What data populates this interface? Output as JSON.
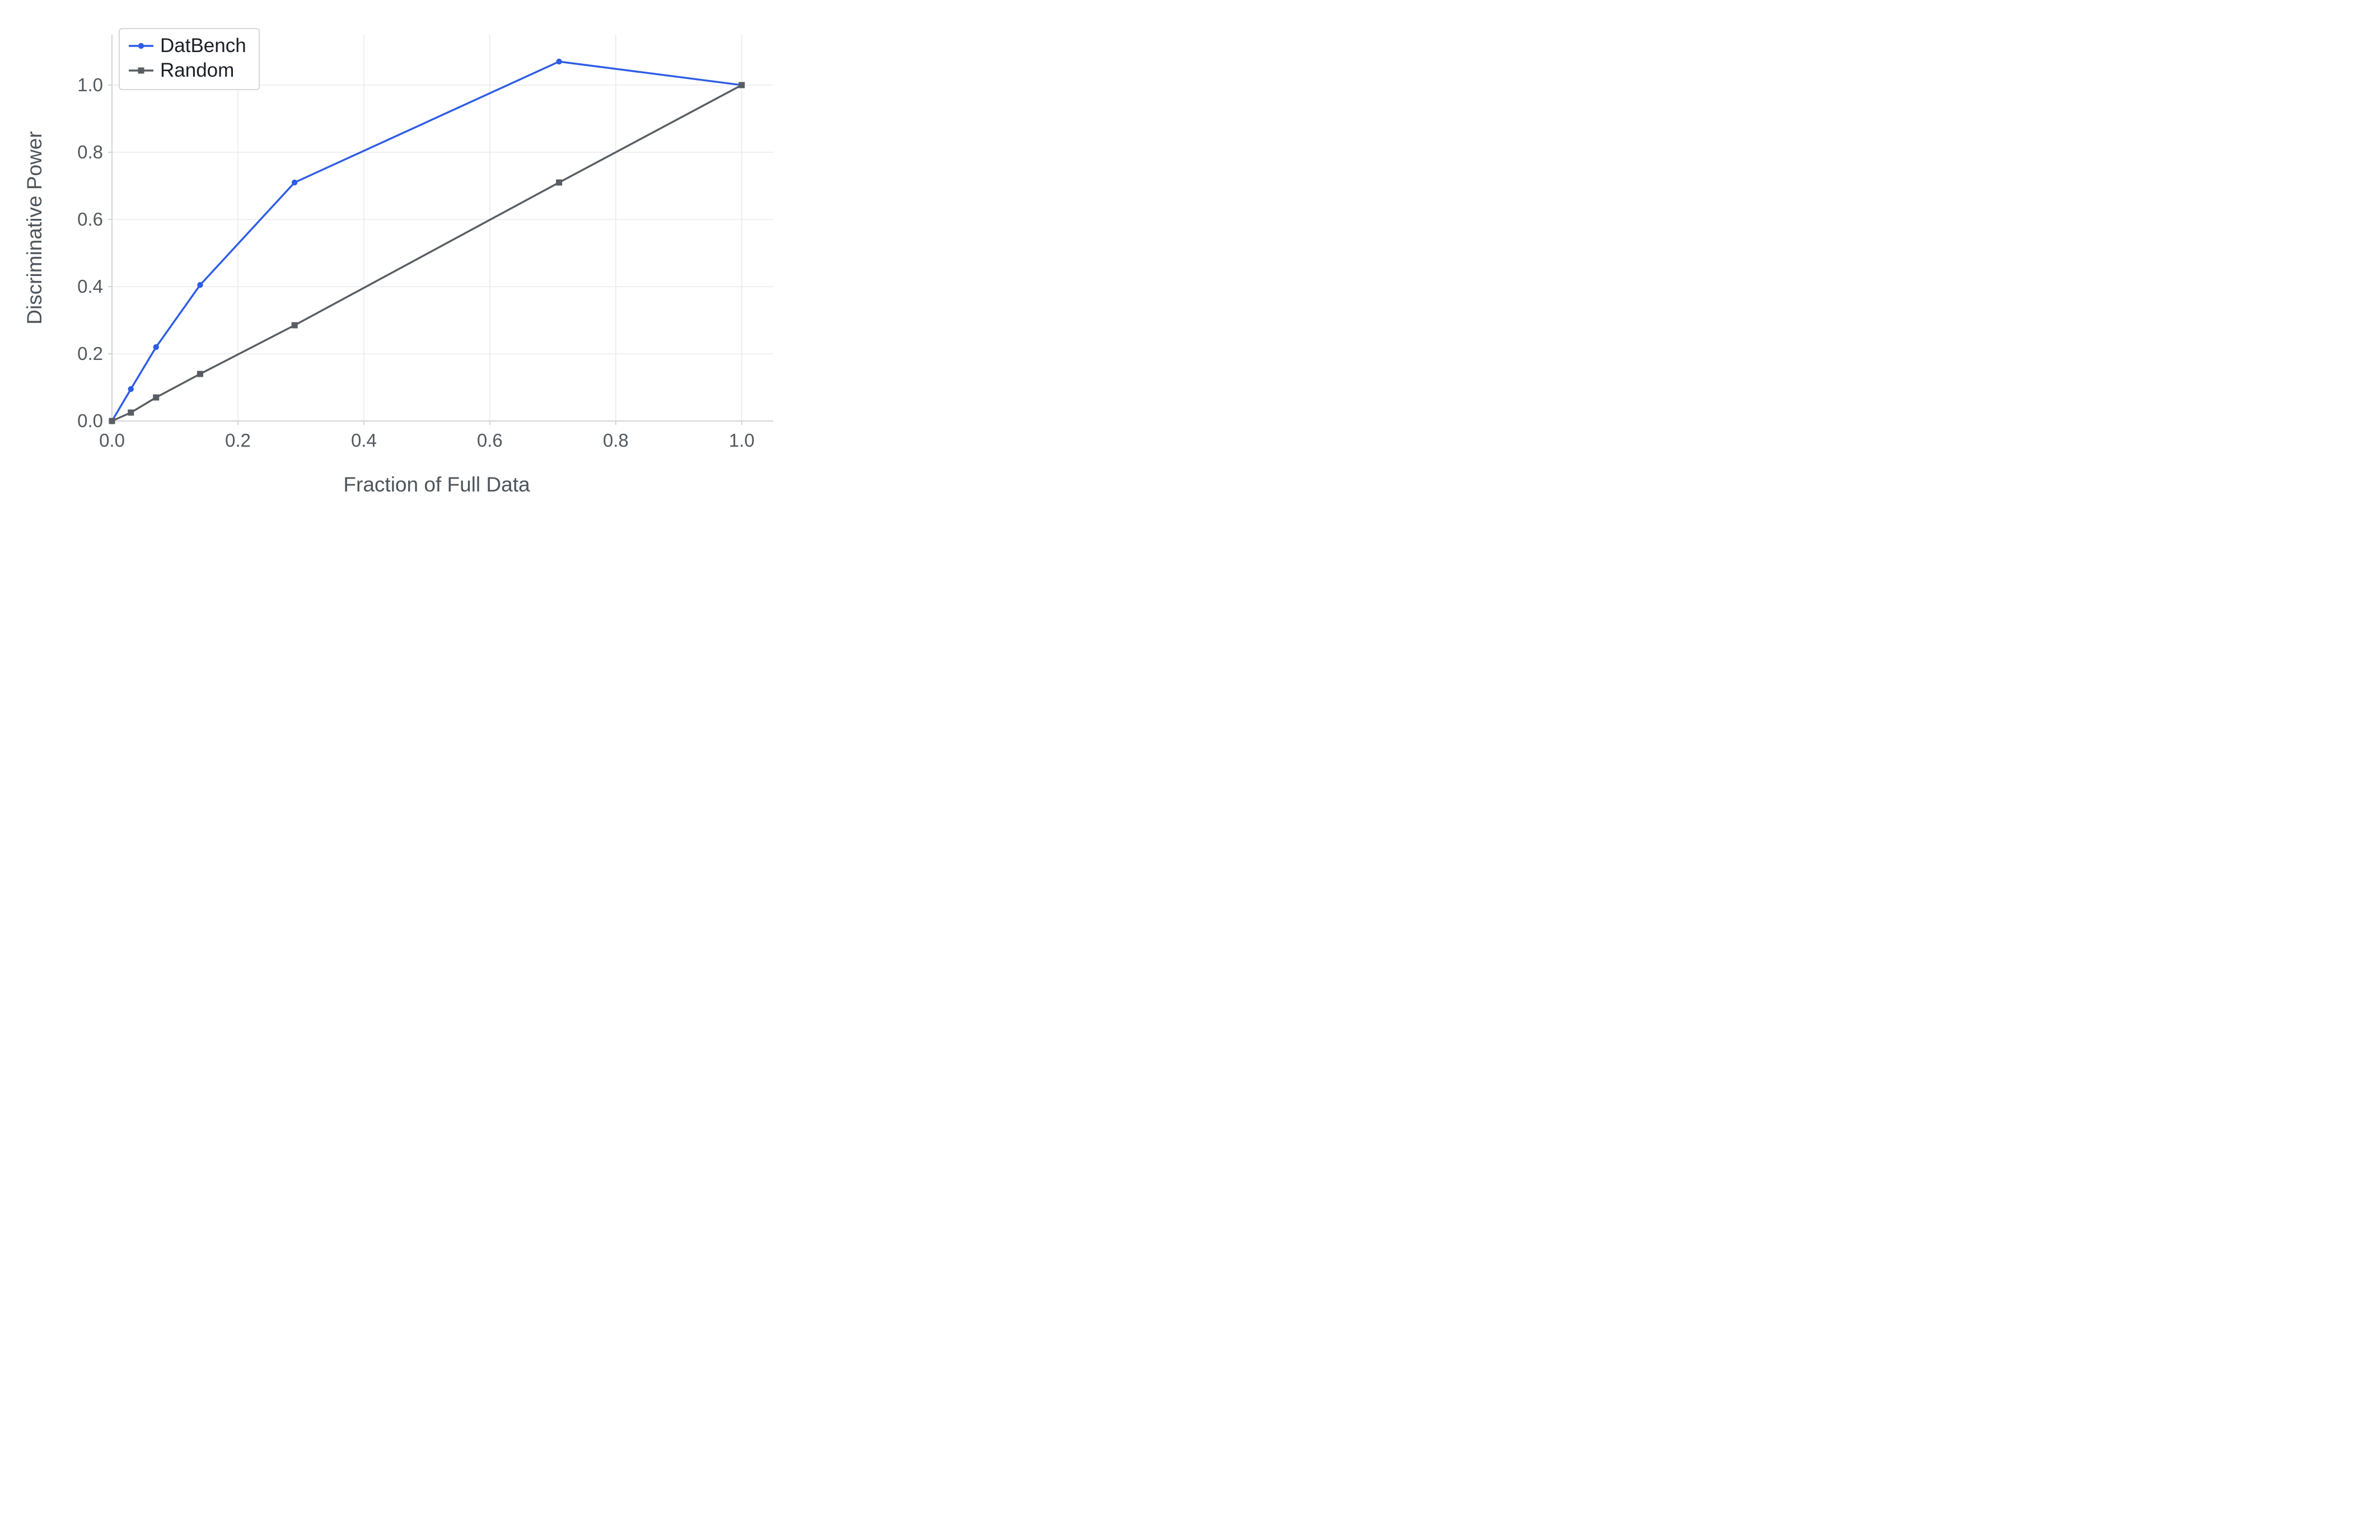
{
  "chart_data": {
    "type": "line",
    "title": "",
    "xlabel": "Fraction of Full Data",
    "ylabel": "Discriminative Power",
    "xlim": [
      0,
      1.05
    ],
    "ylim": [
      0,
      1.15
    ],
    "grid": true,
    "legend_position": "top-left",
    "xticks": {
      "values": [
        0.0,
        0.2,
        0.4,
        0.6,
        0.8,
        1.0
      ],
      "labels": [
        "0.0",
        "0.2",
        "0.4",
        "0.6",
        "0.8",
        "1.0"
      ]
    },
    "yticks": {
      "values": [
        0.0,
        0.2,
        0.4,
        0.6,
        0.8,
        1.0
      ],
      "labels": [
        "0.0",
        "0.2",
        "0.4",
        "0.6",
        "0.8",
        "1.0"
      ]
    },
    "series": [
      {
        "name": "DatBench",
        "color": "#2d5ce6",
        "marker": "circle",
        "x": [
          0.0,
          0.03,
          0.07,
          0.14,
          0.29,
          0.71,
          1.0
        ],
        "y": [
          0.0,
          0.095,
          0.22,
          0.405,
          0.71,
          1.07,
          1.0
        ]
      },
      {
        "name": "Random",
        "color": "#575d63",
        "marker": "square",
        "x": [
          0.0,
          0.03,
          0.07,
          0.14,
          0.29,
          0.71,
          1.0
        ],
        "y": [
          0.0,
          0.025,
          0.07,
          0.14,
          0.285,
          0.71,
          1.0
        ]
      }
    ],
    "style": {
      "background": "#ffffff",
      "grid_color": "#ebebef",
      "spine_color": "#d3d3d8",
      "tick_label_color": "#53585e",
      "axis_label_color": "#4e545a",
      "legend_border_color": "#d7d7db",
      "legend_text_color": "#1c2026"
    }
  }
}
